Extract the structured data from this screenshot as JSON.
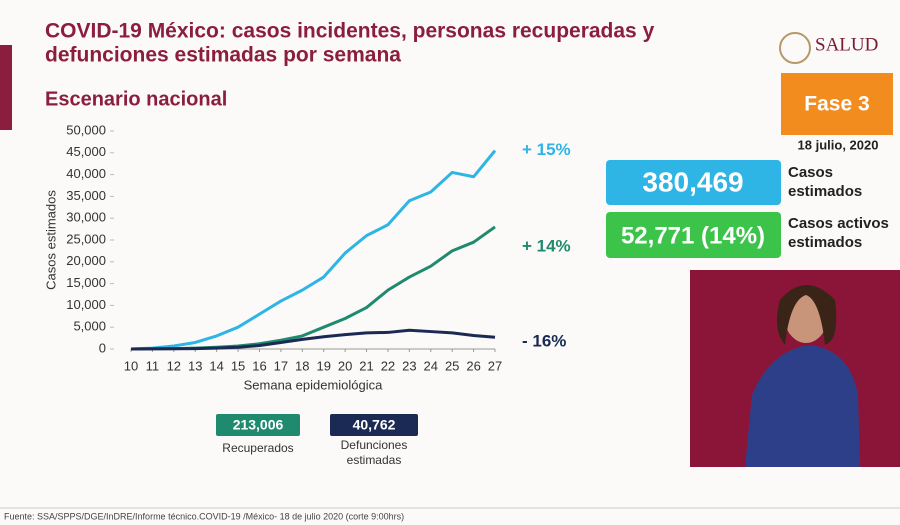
{
  "slide": {
    "title_lines": [
      "COVID-19 México: casos incidentes, personas recuperadas y",
      "defunciones estimadas por semana"
    ],
    "subtitle": "Escenario nacional",
    "logo": "SALUD",
    "phase": "Fase 3",
    "date": "18 julio, 2020",
    "estimated_cases": {
      "value": "380,469",
      "label_lines": [
        "Casos",
        "estimados"
      ]
    },
    "active_cases": {
      "value": "52,771 (14%)",
      "label_lines": [
        "Casos activos",
        "estimados"
      ]
    },
    "recovered": {
      "value": "213,006",
      "label": "Recuperados"
    },
    "deaths": {
      "value": "40,762",
      "label_lines": [
        "Defunciones",
        "estimadas"
      ]
    },
    "source": "Fuente: SSA/SPPS/DGE/InDRE/Informe técnico.COVID-19 /México- 18 de julio 2020 (corte 9:00hrs)"
  },
  "chart_data": {
    "type": "line",
    "x": [
      10,
      11,
      12,
      13,
      14,
      15,
      16,
      17,
      18,
      19,
      20,
      21,
      22,
      23,
      24,
      25,
      26,
      27
    ],
    "xlim": [
      10,
      27
    ],
    "xticks": [
      10,
      11,
      12,
      13,
      14,
      15,
      16,
      17,
      18,
      19,
      20,
      21,
      22,
      23,
      24,
      25,
      26,
      27
    ],
    "ylim": [
      0,
      50000
    ],
    "yticks": [
      0,
      {
        "value": 5000,
        "label": "5,000"
      },
      {
        "value": 10000,
        "label": "10,000"
      },
      {
        "value": 15000,
        "label": "15,000"
      },
      {
        "value": 20000,
        "label": "20,000"
      },
      {
        "value": 25000,
        "label": "25,000"
      },
      {
        "value": 30000,
        "label": "30,000"
      },
      {
        "value": 35000,
        "label": "35,000"
      },
      {
        "value": 40000,
        "label": "40,000"
      },
      {
        "value": 45000,
        "label": "45,000"
      },
      {
        "value": 50000,
        "label": "50,000"
      }
    ],
    "x_label": "Semana epidemiológica",
    "y_label": "Casos estimados",
    "grid": false,
    "series": [
      {
        "name": "Casos estimados",
        "color": "#2fb4e6",
        "annotation": "+ 15%",
        "values": [
          0,
          200,
          700,
          1500,
          3000,
          5000,
          8000,
          11000,
          13500,
          16500,
          22000,
          26000,
          28500,
          34000,
          36000,
          40500,
          39500,
          45500
        ]
      },
      {
        "name": "Recuperados",
        "color": "#1f8a6e",
        "annotation": "+ 14%",
        "values": [
          0,
          50,
          100,
          200,
          400,
          700,
          1200,
          2000,
          3000,
          5000,
          7000,
          9500,
          13500,
          16500,
          19000,
          22500,
          24500,
          28000
        ]
      },
      {
        "name": "Defunciones estimadas",
        "color": "#1b2a55",
        "annotation": "- 16%",
        "values": [
          0,
          20,
          50,
          100,
          200,
          400,
          800,
          1500,
          2200,
          2800,
          3300,
          3700,
          3800,
          4300,
          4000,
          3700,
          3100,
          2700
        ]
      }
    ]
  }
}
